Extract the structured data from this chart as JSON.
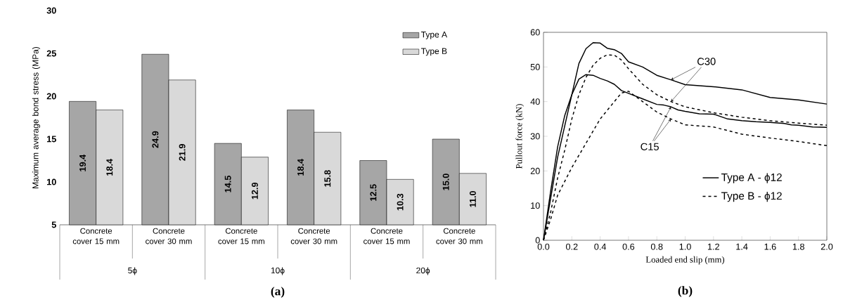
{
  "chart_data": [
    {
      "type": "bar",
      "ylabel": "Maximum average bond stress (MPa)",
      "categories": [
        "Concrete cover 15 mm",
        "Concrete cover 30 mm",
        "Concrete cover 15 mm",
        "Concrete cover 30 mm",
        "Concrete cover 15 mm",
        "Concrete cover 30 mm"
      ],
      "series": [
        {
          "name": "Type A",
          "color": "#a6a6a6",
          "values": [
            19.4,
            24.9,
            14.5,
            18.4,
            12.5,
            15.0
          ],
          "value_labels": [
            "19.4",
            "24.9",
            "14.5",
            "18.4",
            "12.5",
            "15.0"
          ]
        },
        {
          "name": "Type B",
          "color": "#d9d9d9",
          "values": [
            18.4,
            21.9,
            12.9,
            15.8,
            10.3,
            11.0
          ],
          "value_labels": [
            "18.4",
            "21.9",
            "12.9",
            "15.8",
            "10.3",
            "11.0"
          ]
        }
      ],
      "ylim": [
        5,
        30
      ],
      "yticks": [
        5,
        10,
        15,
        20,
        25,
        30
      ],
      "legend": "top right",
      "annotations": [
        "5ϕ",
        "10ϕ",
        "20ϕ",
        "(a)"
      ]
    },
    {
      "type": "line",
      "xlabel": "Loaded end slip (mm)",
      "ylabel": "Pullout force (kN)",
      "series": [
        {
          "name": "Type A - ϕ12",
          "color": "#000000",
          "line_style": "solid",
          "x": [
            0,
            0.05,
            0.1,
            0.15,
            0.2,
            0.25,
            0.3,
            0.35,
            0.4,
            0.45,
            0.5,
            0.55,
            0.6,
            0.7,
            0.8,
            0.9,
            1.0,
            1.2,
            1.4,
            1.6,
            1.8,
            2.0
          ],
          "values": [
            0,
            12,
            24,
            33,
            42,
            51,
            55.3,
            57,
            56.9,
            55.4,
            55,
            53.9,
            51.5,
            50,
            47.6,
            46.3,
            44.9,
            44.3,
            43.4,
            41.2,
            40.5,
            39.3
          ]
        },
        {
          "color": "#000000",
          "line_style": "solid",
          "x": [
            0,
            0.05,
            0.1,
            0.15,
            0.2,
            0.25,
            0.3,
            0.35,
            0.4,
            0.45,
            0.5,
            0.55,
            0.6,
            0.7,
            0.8,
            0.85,
            0.9,
            0.95,
            1.0,
            1.1,
            1.2,
            1.3,
            1.4,
            1.5,
            1.6,
            1.7,
            1.75,
            1.8,
            1.9,
            2.0
          ],
          "values": [
            0,
            14,
            27,
            36,
            42,
            46.5,
            47.8,
            47.6,
            46.7,
            46,
            45,
            43.2,
            42.4,
            40.8,
            39.2,
            39,
            38.5,
            37.6,
            37.2,
            36.5,
            36.4,
            35,
            34.5,
            34.2,
            34,
            33.7,
            33.3,
            33.2,
            32.7,
            32.6
          ]
        },
        {
          "name": "Type B - ϕ12",
          "color": "#000000",
          "line_style": "dashed",
          "x": [
            0,
            0.05,
            0.1,
            0.15,
            0.2,
            0.25,
            0.3,
            0.35,
            0.4,
            0.45,
            0.5,
            0.55,
            0.6,
            0.7,
            0.8,
            0.9,
            1.0,
            1.2,
            1.4,
            1.6,
            1.8,
            2.0
          ],
          "values": [
            0,
            8,
            18,
            26,
            35,
            42,
            47,
            50.5,
            52.5,
            53.5,
            53.4,
            52,
            49.5,
            45,
            42,
            40,
            38.5,
            36.8,
            35.5,
            34.5,
            33.8,
            33.2
          ]
        },
        {
          "color": "#000000",
          "line_style": "dashed",
          "x": [
            0,
            0.05,
            0.1,
            0.2,
            0.3,
            0.4,
            0.5,
            0.55,
            0.6,
            0.7,
            0.8,
            0.9,
            1.0,
            1.2,
            1.4,
            1.6,
            1.8,
            2.0
          ],
          "values": [
            0,
            6,
            13,
            21,
            28,
            35,
            40,
            42.5,
            43,
            40,
            37,
            35,
            33.3,
            32.7,
            30.6,
            29.5,
            28.5,
            27.3
          ]
        }
      ],
      "xlim": [
        0,
        2
      ],
      "ylim": [
        0,
        60
      ],
      "xticks": [
        {
          "value": 0,
          "label": "0.0"
        },
        {
          "value": 0.2,
          "label": "0.2"
        },
        {
          "value": 0.4,
          "label": "0.4"
        },
        {
          "value": 0.6,
          "label": "0.6"
        },
        {
          "value": 0.8,
          "label": "0.8"
        },
        {
          "value": 1,
          "label": "1.0"
        },
        {
          "value": 1.2,
          "label": "1.2"
        },
        {
          "value": 1.4,
          "label": "1.4"
        },
        {
          "value": 1.6,
          "label": "1.6"
        },
        {
          "value": 1.8,
          "label": "1.8"
        },
        {
          "value": 2,
          "label": "2.0"
        }
      ],
      "yticks": [
        0,
        10,
        20,
        30,
        40,
        50,
        60
      ],
      "legend": "bottom right",
      "marker": "none",
      "annotations": [
        {
          "text": "C30",
          "x": 0.9,
          "y": 40
        },
        {
          "text": "C15",
          "x": 0.9,
          "y": 35
        },
        "(b)"
      ]
    }
  ]
}
